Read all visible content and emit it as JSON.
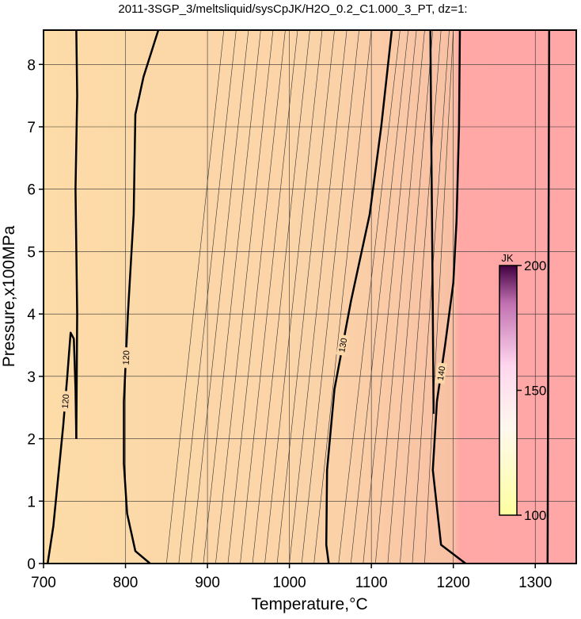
{
  "chart_data": {
    "type": "contour",
    "title": "2011-3SGP_3/meltsliquid/sysCpJK/H2O_0.2_C1.000_3_PT, dz=1:",
    "x_label": "Temperature,°C",
    "y_label": "Pressure,x100MPa",
    "xlim": [
      700,
      1350
    ],
    "ylim": [
      0,
      8.55
    ],
    "xticks": [
      700,
      800,
      900,
      1000,
      1100,
      1200,
      1300
    ],
    "yticks": [
      0,
      1,
      2,
      3,
      4,
      5,
      6,
      7,
      8
    ],
    "grid": true,
    "contours": [
      {
        "level": 120,
        "x": [
          705,
          712,
          718,
          724,
          729,
          733,
          737,
          739,
          740
        ],
        "y": [
          0,
          0.6,
          1.4,
          2.2,
          3.0,
          3.7,
          3.6,
          2.8,
          2.0
        ]
      },
      {
        "level": 120,
        "x": [
          830,
          812,
          802,
          798,
          798,
          803,
          810,
          812,
          822,
          840
        ],
        "y": [
          0,
          0.2,
          0.8,
          1.6,
          2.6,
          4.0,
          5.6,
          7.2,
          7.8,
          8.55
        ]
      },
      {
        "level": 130,
        "x": [
          1048,
          1045,
          1046,
          1055,
          1075,
          1098,
          1112,
          1125
        ],
        "y": [
          0,
          0.3,
          1.5,
          2.8,
          4.2,
          5.6,
          7.0,
          8.55
        ]
      },
      {
        "level": 140,
        "x": [
          1215,
          1185,
          1175,
          1180,
          1190,
          1200,
          1204,
          1207,
          1208
        ],
        "y": [
          0,
          0.3,
          1.5,
          2.6,
          3.5,
          4.5,
          5.5,
          7.0,
          8.55
        ]
      },
      {
        "x": [
          740,
          741,
          739,
          741,
          740
        ],
        "y": [
          2.0,
          4.0,
          6.0,
          7.5,
          8.55
        ]
      },
      {
        "x": [
          1176,
          1175,
          1174,
          1173,
          1172
        ],
        "y": [
          2.4,
          4.0,
          5.5,
          7.0,
          8.55
        ]
      },
      {
        "x": [
          1315,
          1316,
          1317
        ],
        "y": [
          0,
          4.2,
          8.55
        ]
      }
    ],
    "minor_contours": {
      "x_bottom": [
        850,
        865,
        880,
        895,
        910,
        925,
        940,
        955,
        970,
        985,
        1000,
        1015,
        1030,
        1060,
        1075,
        1090,
        1105,
        1120,
        1135,
        1150,
        1165
      ],
      "x_top": [
        920,
        935,
        950,
        965,
        980,
        995,
        1010,
        1025,
        1040,
        1055,
        1070,
        1085,
        1100,
        1135,
        1145,
        1155,
        1165,
        1175,
        1185,
        1195,
        1200
      ]
    },
    "colorbar": {
      "label": "JK",
      "lim": [
        100,
        200
      ],
      "ticks": [
        100,
        150,
        200
      ]
    }
  }
}
